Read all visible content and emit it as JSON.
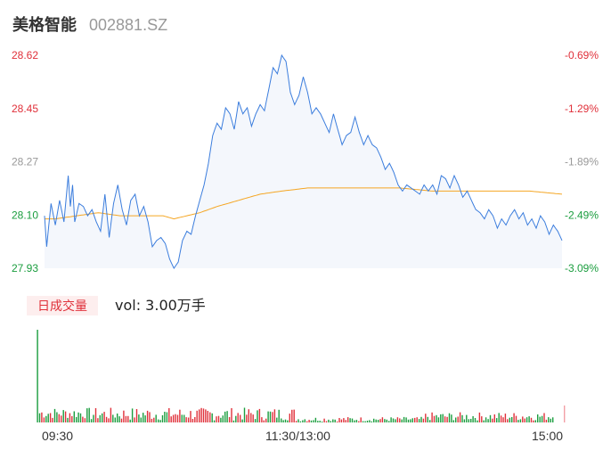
{
  "header": {
    "name": "美格智能",
    "code": "002881.SZ"
  },
  "volume_panel": {
    "badge": "日成交量",
    "vol_text": "vol: 3.00万手"
  },
  "time_axis": {
    "start": "09:30",
    "mid": "11:30/13:00",
    "end": "15:00"
  },
  "colors": {
    "price_line": "#3b7ddd",
    "avg_line": "#f5a623",
    "up": "#e0303a",
    "down": "#1a9d3e",
    "neutral": "#999999"
  },
  "chart_data": {
    "type": "line",
    "y_left_ticks": [
      "28.62",
      "28.45",
      "28.27",
      "28.10",
      "27.93"
    ],
    "y_right_ticks": [
      "-0.69%",
      "-1.29%",
      "-1.89%",
      "-2.49%",
      "-3.09%"
    ],
    "ylim": [
      27.93,
      28.62
    ],
    "x_points": 240,
    "series": [
      {
        "key": "price",
        "anchors": [
          [
            0,
            28.1
          ],
          [
            1,
            28.0
          ],
          [
            3,
            28.14
          ],
          [
            5,
            28.07
          ],
          [
            7,
            28.15
          ],
          [
            9,
            28.08
          ],
          [
            11,
            28.23
          ],
          [
            12,
            28.13
          ],
          [
            13,
            28.2
          ],
          [
            14,
            28.08
          ],
          [
            16,
            28.14
          ],
          [
            18,
            28.13
          ],
          [
            20,
            28.1
          ],
          [
            22,
            28.12
          ],
          [
            24,
            28.08
          ],
          [
            26,
            28.05
          ],
          [
            28,
            28.17
          ],
          [
            30,
            28.03
          ],
          [
            32,
            28.14
          ],
          [
            34,
            28.2
          ],
          [
            36,
            28.12
          ],
          [
            38,
            28.07
          ],
          [
            40,
            28.15
          ],
          [
            42,
            28.17
          ],
          [
            44,
            28.1
          ],
          [
            46,
            28.13
          ],
          [
            48,
            28.08
          ],
          [
            50,
            28.0
          ],
          [
            52,
            28.02
          ],
          [
            54,
            28.03
          ],
          [
            56,
            28.01
          ],
          [
            58,
            27.96
          ],
          [
            60,
            27.93
          ],
          [
            62,
            27.95
          ],
          [
            64,
            28.02
          ],
          [
            66,
            28.05
          ],
          [
            68,
            28.04
          ],
          [
            70,
            28.1
          ],
          [
            72,
            28.15
          ],
          [
            74,
            28.2
          ],
          [
            76,
            28.27
          ],
          [
            78,
            28.36
          ],
          [
            80,
            28.4
          ],
          [
            82,
            28.38
          ],
          [
            84,
            28.45
          ],
          [
            86,
            28.43
          ],
          [
            88,
            28.38
          ],
          [
            90,
            28.47
          ],
          [
            92,
            28.43
          ],
          [
            94,
            28.45
          ],
          [
            96,
            28.39
          ],
          [
            98,
            28.43
          ],
          [
            100,
            28.46
          ],
          [
            102,
            28.44
          ],
          [
            104,
            28.51
          ],
          [
            106,
            28.58
          ],
          [
            108,
            28.56
          ],
          [
            110,
            28.62
          ],
          [
            112,
            28.6
          ],
          [
            114,
            28.5
          ],
          [
            116,
            28.46
          ],
          [
            118,
            28.49
          ],
          [
            120,
            28.55
          ],
          [
            122,
            28.5
          ],
          [
            124,
            28.43
          ],
          [
            126,
            28.45
          ],
          [
            128,
            28.43
          ],
          [
            130,
            28.4
          ],
          [
            132,
            28.37
          ],
          [
            134,
            28.43
          ],
          [
            136,
            28.38
          ],
          [
            138,
            28.33
          ],
          [
            140,
            28.36
          ],
          [
            142,
            28.37
          ],
          [
            144,
            28.42
          ],
          [
            146,
            28.37
          ],
          [
            148,
            28.33
          ],
          [
            150,
            28.36
          ],
          [
            152,
            28.33
          ],
          [
            154,
            28.32
          ],
          [
            156,
            28.29
          ],
          [
            158,
            28.25
          ],
          [
            160,
            28.27
          ],
          [
            162,
            28.24
          ],
          [
            164,
            28.2
          ],
          [
            166,
            28.18
          ],
          [
            168,
            28.2
          ],
          [
            170,
            28.19
          ],
          [
            172,
            28.18
          ],
          [
            174,
            28.17
          ],
          [
            176,
            28.2
          ],
          [
            178,
            28.18
          ],
          [
            180,
            28.2
          ],
          [
            182,
            28.17
          ],
          [
            184,
            28.23
          ],
          [
            186,
            28.22
          ],
          [
            188,
            28.19
          ],
          [
            190,
            28.23
          ],
          [
            192,
            28.2
          ],
          [
            194,
            28.16
          ],
          [
            196,
            28.18
          ],
          [
            198,
            28.15
          ],
          [
            200,
            28.12
          ],
          [
            202,
            28.11
          ],
          [
            204,
            28.09
          ],
          [
            206,
            28.12
          ],
          [
            208,
            28.1
          ],
          [
            210,
            28.06
          ],
          [
            212,
            28.09
          ],
          [
            214,
            28.07
          ],
          [
            216,
            28.1
          ],
          [
            218,
            28.12
          ],
          [
            220,
            28.09
          ],
          [
            222,
            28.11
          ],
          [
            224,
            28.07
          ],
          [
            226,
            28.09
          ],
          [
            228,
            28.06
          ],
          [
            230,
            28.1
          ],
          [
            232,
            28.08
          ],
          [
            234,
            28.04
          ],
          [
            236,
            28.07
          ],
          [
            238,
            28.05
          ],
          [
            240,
            28.02
          ]
        ]
      },
      {
        "key": "average",
        "anchors": [
          [
            0,
            28.09
          ],
          [
            5,
            28.09
          ],
          [
            15,
            28.1
          ],
          [
            25,
            28.11
          ],
          [
            35,
            28.1
          ],
          [
            45,
            28.1
          ],
          [
            55,
            28.1
          ],
          [
            60,
            28.09
          ],
          [
            66,
            28.1
          ],
          [
            72,
            28.11
          ],
          [
            80,
            28.13
          ],
          [
            90,
            28.15
          ],
          [
            100,
            28.17
          ],
          [
            110,
            28.18
          ],
          [
            122,
            28.19
          ],
          [
            135,
            28.19
          ],
          [
            150,
            28.19
          ],
          [
            165,
            28.19
          ],
          [
            180,
            28.18
          ],
          [
            195,
            28.18
          ],
          [
            210,
            28.18
          ],
          [
            225,
            28.18
          ],
          [
            240,
            28.17
          ]
        ]
      }
    ],
    "volume": {
      "ymax": 100,
      "colors": "auto",
      "first_bar": 100
    }
  }
}
